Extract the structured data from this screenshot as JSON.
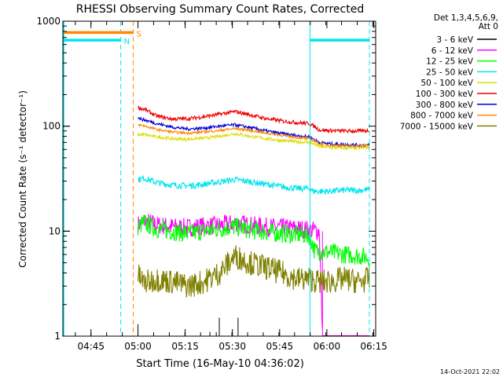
{
  "chart_data": {
    "type": "line",
    "title": "RHESSI Observing Summary Count Rates, Corrected",
    "xlabel": "Start Time (16-May-10 04:36:02)",
    "ylabel": "Corrected Count Rate (s⁻¹ detector⁻¹)",
    "yscale": "log",
    "xlim": [
      0,
      100
    ],
    "ylim": [
      1,
      1000
    ],
    "x_ticks": [
      {
        "pos": 8.98,
        "label": "04:45"
      },
      {
        "pos": 24.0,
        "label": "05:00"
      },
      {
        "pos": 39.1,
        "label": "05:15"
      },
      {
        "pos": 54.2,
        "label": "05:30"
      },
      {
        "pos": 69.3,
        "label": "05:45"
      },
      {
        "pos": 84.4,
        "label": "06:00"
      },
      {
        "pos": 99.4,
        "label": "06:15"
      }
    ],
    "y_ticks": [
      {
        "value": 1,
        "label": "1"
      },
      {
        "value": 10,
        "label": "10"
      },
      {
        "value": 100,
        "label": "100"
      },
      {
        "value": 1000,
        "label": "1000"
      }
    ],
    "grid": false,
    "legend": {
      "position": "top-right",
      "header": [
        "Det 1,3,4,5,6,9,",
        "Att 0"
      ]
    },
    "flags": [
      {
        "label": "S",
        "color": "#ff8800",
        "x_start": 0,
        "x_end": 22.5,
        "value": 780
      },
      {
        "label": "N",
        "color": "#00e5ee",
        "x_start": 0,
        "x_end": 18.5,
        "value": 660
      },
      {
        "label": "",
        "color": "#00e5ee",
        "x_start": 79,
        "x_end": 98,
        "value": 660
      }
    ],
    "night_lines": [
      {
        "x": 18.5,
        "color": "#00e5ee",
        "style": "dashed"
      },
      {
        "x": 22.5,
        "color": "#ff8800",
        "style": "dashed"
      },
      {
        "x": 79.0,
        "color": "#00e5ee",
        "style": "solid"
      },
      {
        "x": 98.0,
        "color": "#00e5ee",
        "style": "dashed"
      }
    ],
    "series": [
      {
        "name": "3 - 6 keV",
        "color": "#000000",
        "x": [
          24,
          42,
          47,
          50,
          55,
          56,
          60,
          70,
          82
        ],
        "y": [
          1.3,
          1.0,
          1.1,
          1.5,
          1.0,
          1.5,
          1.0,
          1.0,
          1.0
        ]
      },
      {
        "name": "6 - 12 keV",
        "color": "#ff00ff",
        "x": [
          24,
          26,
          30,
          35,
          40,
          45,
          50,
          55,
          60,
          65,
          70,
          75,
          79,
          82,
          83
        ],
        "y": [
          11.5,
          12.5,
          11.5,
          11.0,
          10.8,
          11.2,
          11.3,
          12.0,
          11.4,
          11.0,
          10.8,
          10.6,
          10.3,
          10.0,
          1.0
        ]
      },
      {
        "name": "12 - 25 keV",
        "color": "#00ff00",
        "x": [
          24,
          26,
          30,
          35,
          40,
          45,
          50,
          55,
          60,
          65,
          70,
          75,
          79,
          80.5,
          85,
          90,
          95,
          98
        ],
        "y": [
          11,
          12.0,
          10.5,
          10.0,
          9.5,
          10.0,
          10.5,
          11.0,
          10.3,
          9.8,
          9.5,
          9.3,
          9.0,
          6.5,
          6.3,
          6.0,
          5.8,
          5.6
        ]
      },
      {
        "name": "25 - 50 keV",
        "color": "#00e5ee",
        "x": [
          24,
          26,
          30,
          35,
          40,
          45,
          50,
          55,
          60,
          65,
          70,
          75,
          79,
          80,
          85,
          90,
          95,
          98
        ],
        "y": [
          31,
          32,
          29,
          27.5,
          27.0,
          28,
          29.5,
          31,
          29.5,
          28,
          26.5,
          25.5,
          25.5,
          24,
          24,
          24.5,
          24.5,
          25
        ]
      },
      {
        "name": "50 - 100 keV",
        "color": "#dddd00",
        "x": [
          24,
          26,
          30,
          35,
          40,
          45,
          50,
          55,
          60,
          65,
          70,
          75,
          79,
          82,
          85,
          90,
          95,
          98
        ],
        "y": [
          83,
          83,
          79,
          76,
          75,
          77,
          80,
          85,
          80,
          76,
          73,
          71,
          70,
          64,
          63,
          62,
          62,
          63
        ]
      },
      {
        "name": "100 - 300 keV",
        "color": "#ee0000",
        "x": [
          24,
          26,
          30,
          35,
          40,
          45,
          50,
          55,
          60,
          65,
          70,
          75,
          79,
          82,
          85,
          90,
          95,
          98
        ],
        "y": [
          150,
          145,
          125,
          117,
          118,
          123,
          130,
          138,
          128,
          118,
          112,
          108,
          106,
          92,
          91,
          90,
          90,
          91
        ]
      },
      {
        "name": "300 - 800 keV",
        "color": "#0000dd",
        "x": [
          24,
          26,
          30,
          35,
          40,
          45,
          50,
          55,
          60,
          65,
          70,
          75,
          79,
          82,
          85,
          90,
          95,
          98
        ],
        "y": [
          120,
          115,
          106,
          98,
          94,
          96,
          100,
          103,
          97,
          90,
          85,
          81,
          79,
          70,
          68,
          67,
          66,
          66
        ]
      },
      {
        "name": "800 - 7000 keV",
        "color": "#ff8800",
        "x": [
          24,
          26,
          30,
          35,
          40,
          45,
          50,
          55,
          60,
          65,
          70,
          75,
          79,
          82,
          85,
          90,
          95,
          98
        ],
        "y": [
          103,
          101,
          93,
          88,
          86,
          88,
          91,
          95,
          91,
          86,
          82,
          78,
          76,
          68,
          66,
          65,
          65,
          66
        ]
      },
      {
        "name": "7000 - 15000 keV",
        "color": "#808000",
        "x": [
          24,
          26,
          30,
          35,
          40,
          45,
          50,
          55,
          60,
          65,
          70,
          75,
          79,
          82,
          85,
          90,
          95,
          98
        ],
        "y": [
          3.8,
          3.2,
          3.5,
          3.3,
          3.0,
          3.3,
          4.0,
          5.8,
          5.0,
          4.5,
          4.0,
          3.5,
          3.5,
          3.3,
          3.3,
          3.5,
          3.3,
          3.5
        ]
      }
    ],
    "timestamp": "14-Oct-2021 22:02"
  }
}
